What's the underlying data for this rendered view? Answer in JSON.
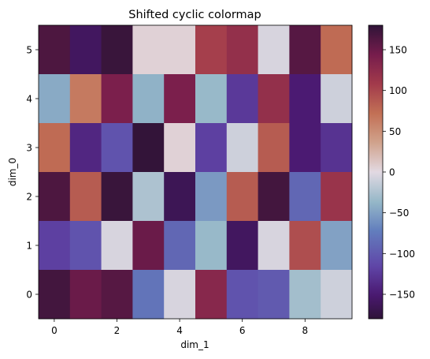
{
  "chart_data": {
    "type": "heatmap",
    "title": "Shifted cyclic colormap",
    "xlabel": "dim_1",
    "ylabel": "dim_0",
    "x_ticks": [
      0,
      2,
      4,
      6,
      8
    ],
    "y_ticks": [
      0,
      1,
      2,
      3,
      4,
      5
    ],
    "x_range": [
      -0.5,
      9.5
    ],
    "y_range": [
      -0.5,
      5.5
    ],
    "colorbar": {
      "colormap": "twilight_shifted",
      "range": [
        -180,
        180
      ],
      "ticks": [
        -150,
        -100,
        -50,
        0,
        50,
        100,
        150
      ]
    },
    "rows": [
      {
        "dim_0": 5,
        "values": [
          165,
          -160,
          175,
          5,
          5,
          105,
          120,
          -5,
          160,
          75
        ]
      },
      {
        "dim_0": 4,
        "values": [
          -45,
          65,
          140,
          -40,
          140,
          -35,
          -125,
          120,
          -150,
          -10
        ]
      },
      {
        "dim_0": 3,
        "values": [
          75,
          -140,
          -105,
          178,
          5,
          -120,
          -10,
          85,
          -150,
          -130
        ]
      },
      {
        "dim_0": 2,
        "values": [
          165,
          85,
          175,
          -25,
          -165,
          -55,
          85,
          170,
          -90,
          115
        ]
      },
      {
        "dim_0": 1,
        "values": [
          -120,
          -105,
          -5,
          150,
          -90,
          -35,
          -160,
          -5,
          95,
          -50
        ]
      },
      {
        "dim_0": 0,
        "values": [
          170,
          150,
          160,
          -80,
          -5,
          130,
          -105,
          -100,
          -30,
          -10
        ]
      }
    ]
  }
}
